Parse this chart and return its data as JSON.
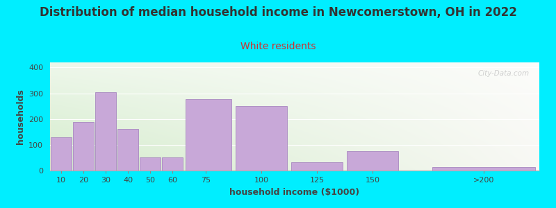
{
  "title": "Distribution of median household income in Newcomerstown, OH in 2022",
  "subtitle": "White residents",
  "xlabel": "household income ($1000)",
  "ylabel": "households",
  "bar_left_edges": [
    5,
    15,
    25,
    35,
    45,
    55,
    65,
    87.5,
    112.5,
    137.5,
    175
  ],
  "bar_widths": [
    10,
    10,
    10,
    10,
    10,
    10,
    22.5,
    25,
    25,
    25,
    50
  ],
  "values": [
    130,
    188,
    303,
    162,
    50,
    50,
    278,
    250,
    32,
    75,
    13
  ],
  "xtick_positions": [
    10,
    20,
    30,
    40,
    50,
    60,
    75,
    100,
    125,
    150,
    200
  ],
  "xtick_labels": [
    "10",
    "20",
    "30",
    "40",
    "50",
    "60",
    "75",
    "100",
    "125",
    "150",
    ">200"
  ],
  "bar_color": "#c8a8d8",
  "bar_edge_color": "#a888c0",
  "title_color": "#333333",
  "subtitle_color": "#cc3333",
  "xlabel_color": "#444444",
  "ylabel_color": "#444444",
  "background_outer": "#00eeff",
  "background_inner_left": "#d4eccc",
  "background_inner_right": "#f8f8f4",
  "xlim": [
    5,
    225
  ],
  "ylim": [
    0,
    420
  ],
  "yticks": [
    0,
    100,
    200,
    300,
    400
  ],
  "title_fontsize": 12,
  "subtitle_fontsize": 10,
  "label_fontsize": 9,
  "tick_fontsize": 8,
  "watermark": "City-Data.com"
}
